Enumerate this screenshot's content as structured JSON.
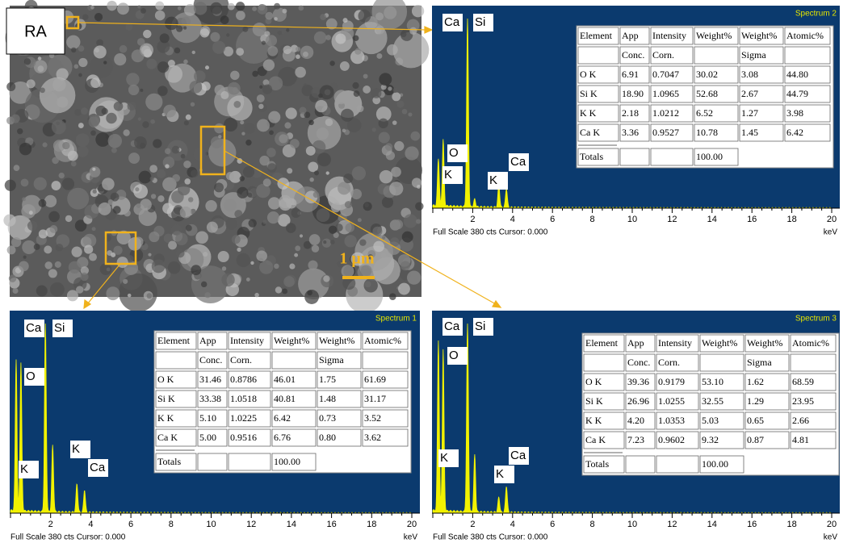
{
  "image": {
    "label": "RA",
    "scale_bar": "1 µm"
  },
  "panels": [
    {
      "title": "Spectrum 2",
      "peak_labels": [
        "Ca",
        "Si",
        "O",
        "K",
        "K",
        "Ca"
      ],
      "x_ticks": [
        2,
        4,
        6,
        8,
        10,
        12,
        14,
        16,
        18,
        20
      ],
      "x_unit": "keV",
      "footer": "Full Scale 380 cts Cursor: 0.000",
      "table": {
        "header": [
          "Element",
          "App",
          "Intensity",
          "Weight%",
          "Weight%",
          "Atomic%"
        ],
        "subheader": {
          "app": "Conc.",
          "intensity": "Corn.",
          "sigma": "Sigma"
        },
        "rows": [
          [
            "O K",
            "6.91",
            "0.7047",
            "30.02",
            "3.08",
            "44.80"
          ],
          [
            "Si K",
            "18.90",
            "1.0965",
            "52.68",
            "2.67",
            "44.79"
          ],
          [
            "K K",
            "2.18",
            "1.0212",
            "6.52",
            "1.27",
            "3.98"
          ],
          [
            "Ca K",
            "3.36",
            "0.9527",
            "10.78",
            "1.45",
            "6.42"
          ]
        ],
        "totals": {
          "label": "Totals",
          "weight": "100.00"
        }
      }
    },
    {
      "title": "Spectrum 1",
      "peak_labels": [
        "Ca",
        "Si",
        "O",
        "K",
        "Ca",
        "K"
      ],
      "x_ticks": [
        2,
        4,
        6,
        8,
        10,
        12,
        14,
        16,
        18,
        20
      ],
      "x_unit": "keV",
      "footer": "Full Scale 380 cts Cursor: 0.000",
      "table": {
        "header": [
          "Element",
          "App",
          "Intensity",
          "Weight%",
          "Weight%",
          "Atomic%"
        ],
        "subheader": {
          "app": "Conc.",
          "intensity": "Corn.",
          "sigma": "Sigma"
        },
        "rows": [
          [
            "O K",
            "31.46",
            "0.8786",
            "46.01",
            "1.75",
            "61.69"
          ],
          [
            "Si K",
            "33.38",
            "1.0518",
            "40.81",
            "1.48",
            "31.17"
          ],
          [
            "K K",
            "5.10",
            "1.0225",
            "6.42",
            "0.73",
            "3.52"
          ],
          [
            "Ca K",
            "5.00",
            "0.9516",
            "6.76",
            "0.80",
            "3.62"
          ]
        ],
        "totals": {
          "label": "Totals",
          "weight": "100.00"
        }
      }
    },
    {
      "title": "Spectrum 3",
      "peak_labels": [
        "Ca",
        "Si",
        "O",
        "K",
        "Ca",
        "K"
      ],
      "x_ticks": [
        2,
        4,
        6,
        8,
        10,
        12,
        14,
        16,
        18,
        20
      ],
      "x_unit": "keV",
      "footer": "Full Scale 380 cts Cursor: 0.000",
      "table": {
        "header": [
          "Element",
          "App",
          "Intensity",
          "Weight%",
          "Weight%",
          "Atomic%"
        ],
        "subheader": {
          "app": "Conc.",
          "intensity": "Corn.",
          "sigma": "Sigma"
        },
        "rows": [
          [
            "O K",
            "39.36",
            "0.9179",
            "53.10",
            "1.62",
            "68.59"
          ],
          [
            "Si K",
            "26.96",
            "1.0255",
            "32.55",
            "1.29",
            "23.95"
          ],
          [
            "K K",
            "4.20",
            "1.0353",
            "5.03",
            "0.65",
            "2.66"
          ],
          [
            "Ca K",
            "7.23",
            "0.9602",
            "9.32",
            "0.87",
            "4.81"
          ]
        ],
        "totals": {
          "label": "Totals",
          "weight": "100.00"
        }
      }
    }
  ]
}
